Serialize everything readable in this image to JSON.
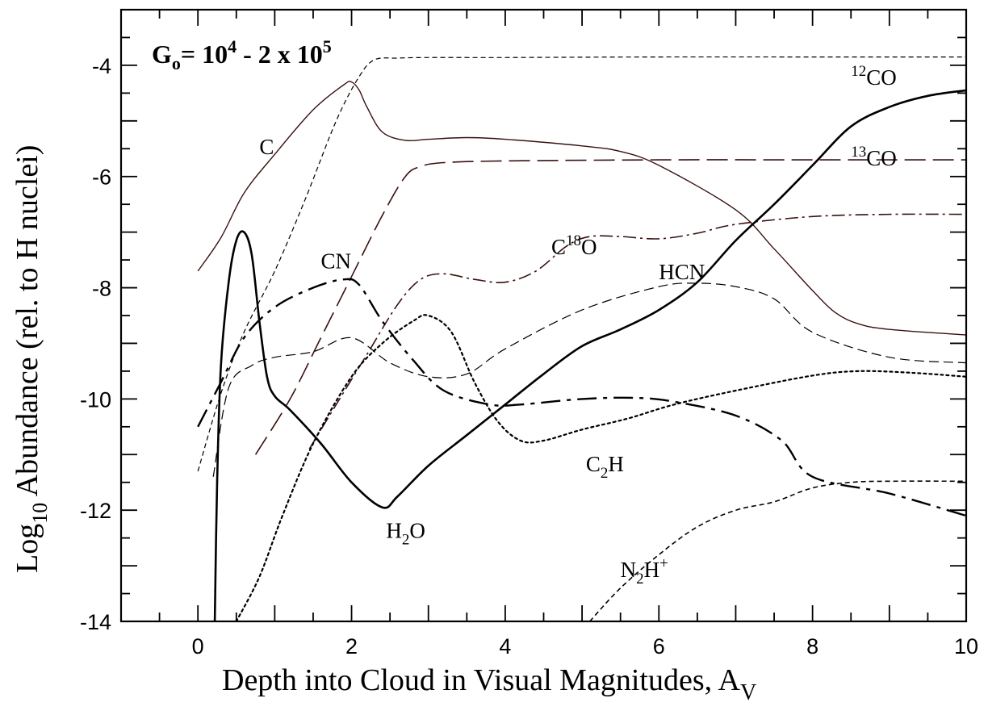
{
  "chart_data": {
    "type": "line",
    "title": "",
    "header": {
      "base": "G",
      "sub": "o",
      "rest": "= 10",
      "sup": "4",
      "tail": " - 2 x 10",
      "sup2": "5"
    },
    "xlabel": {
      "main": "Depth into Cloud in Visual Magnitudes, A",
      "sub": "V"
    },
    "ylabel": {
      "pre": "Log",
      "sub": "10",
      "post": " Abundance (rel. to H nuclei)"
    },
    "xlim": [
      -1,
      10
    ],
    "ylim": [
      -14,
      -3
    ],
    "x_ticks": [
      "0",
      "2",
      "4",
      "6",
      "8",
      "10"
    ],
    "x_tick_values": [
      0,
      2,
      4,
      6,
      8,
      10
    ],
    "y_ticks": [
      "-4",
      "-6",
      "-8",
      "-10",
      "-12",
      "-14"
    ],
    "y_tick_values": [
      -4,
      -6,
      -8,
      -10,
      -12,
      -14
    ],
    "grid": false,
    "series": [
      {
        "name": "12CO",
        "color": "#000000",
        "style": "short-dash",
        "width": 1.2,
        "x": [
          0,
          0.3,
          0.6,
          1.0,
          1.4,
          1.8,
          2.1,
          2.3,
          2.6,
          3,
          4,
          6,
          8,
          10
        ],
        "y": [
          -11.3,
          -9.9,
          -8.8,
          -7.7,
          -6.4,
          -5.0,
          -4.2,
          -3.9,
          -3.87,
          -3.86,
          -3.86,
          -3.85,
          -3.85,
          -3.85
        ]
      },
      {
        "name": "13CO",
        "color": "#3a1010",
        "style": "long-dash",
        "width": 1.6,
        "x": [
          0.75,
          1.2,
          1.6,
          2.0,
          2.4,
          2.7,
          2.9,
          3.2,
          4,
          6,
          8,
          10
        ],
        "y": [
          -11.0,
          -10.0,
          -8.9,
          -7.8,
          -6.7,
          -6.0,
          -5.82,
          -5.75,
          -5.72,
          -5.7,
          -5.7,
          -5.7
        ]
      },
      {
        "name": "C",
        "color": "#3a1010",
        "style": "solid",
        "width": 1.4,
        "x": [
          0,
          0.3,
          0.6,
          1.0,
          1.5,
          1.9,
          2.0,
          2.1,
          2.2,
          2.4,
          2.7,
          3.0,
          3.5,
          4,
          5,
          5.5,
          6,
          7,
          7.5,
          8,
          8.3,
          8.6,
          9,
          10
        ],
        "y": [
          -7.7,
          -7.1,
          -6.3,
          -5.6,
          -4.8,
          -4.35,
          -4.3,
          -4.45,
          -4.75,
          -5.2,
          -5.35,
          -5.33,
          -5.3,
          -5.33,
          -5.45,
          -5.55,
          -5.8,
          -6.6,
          -7.3,
          -8.05,
          -8.45,
          -8.65,
          -8.75,
          -8.85
        ]
      },
      {
        "name": "C18O",
        "color": "#3a1010",
        "style": "dash-dot",
        "width": 1.6,
        "x": [
          1.45,
          1.8,
          2.2,
          2.6,
          2.9,
          3.2,
          3.6,
          4.0,
          4.4,
          4.8,
          5.1,
          5.5,
          6.0,
          6.5,
          7,
          8,
          9,
          10
        ],
        "y": [
          -10.9,
          -10.1,
          -9.2,
          -8.3,
          -7.85,
          -7.75,
          -7.85,
          -7.9,
          -7.7,
          -7.25,
          -7.08,
          -7.08,
          -7.12,
          -7.02,
          -6.86,
          -6.72,
          -6.68,
          -6.68
        ]
      },
      {
        "name": "HCN",
        "color": "#000000",
        "style": "dash",
        "width": 1.2,
        "x": [
          0.2,
          0.4,
          0.7,
          1.0,
          1.5,
          2.0,
          2.5,
          3.0,
          3.5,
          4,
          5,
          6,
          6.5,
          7,
          7.5,
          8,
          9,
          10
        ],
        "y": [
          -11.4,
          -9.8,
          -9.4,
          -9.25,
          -9.15,
          -8.9,
          -9.35,
          -9.6,
          -9.55,
          -9.1,
          -8.4,
          -7.98,
          -7.92,
          -7.98,
          -8.2,
          -8.8,
          -9.25,
          -9.35
        ]
      },
      {
        "name": "CN",
        "color": "#000000",
        "style": "long-dash-dot",
        "width": 2.4,
        "x": [
          0,
          0.3,
          0.6,
          1.0,
          1.5,
          1.9,
          2.1,
          2.4,
          2.8,
          3.2,
          3.8,
          4.2,
          5,
          5.7,
          6.2,
          7,
          7.6,
          8,
          9,
          10
        ],
        "y": [
          -10.5,
          -9.7,
          -8.9,
          -8.35,
          -8.0,
          -7.85,
          -7.95,
          -8.6,
          -9.3,
          -9.85,
          -10.1,
          -10.1,
          -10.0,
          -9.98,
          -10.05,
          -10.3,
          -10.75,
          -11.4,
          -11.7,
          -12.1
        ]
      },
      {
        "name": "C2H",
        "color": "#000000",
        "style": "dotted",
        "width": 2.2,
        "x": [
          0.5,
          0.8,
          1.1,
          1.5,
          2.0,
          2.4,
          2.8,
          3.0,
          3.3,
          3.6,
          3.9,
          4.2,
          4.5,
          5.0,
          5.6,
          6.2,
          7.0,
          8.0,
          8.6,
          9.3,
          10
        ],
        "y": [
          -14.0,
          -13.2,
          -12.1,
          -10.8,
          -9.6,
          -9.0,
          -8.6,
          -8.5,
          -8.8,
          -9.7,
          -10.4,
          -10.75,
          -10.75,
          -10.55,
          -10.35,
          -10.1,
          -9.85,
          -9.58,
          -9.5,
          -9.53,
          -9.6
        ]
      },
      {
        "name": "H2O",
        "color": "#000000",
        "style": "solid",
        "width": 2.6,
        "x": [
          0.22,
          0.25,
          0.3,
          0.4,
          0.5,
          0.6,
          0.7,
          0.8,
          0.9,
          1.0,
          1.2,
          1.6,
          2.0,
          2.4,
          2.6,
          3.0,
          3.5,
          4.0,
          4.5,
          5,
          5.5,
          6,
          6.5,
          7,
          7.5,
          8,
          8.5,
          9,
          9.5,
          10
        ],
        "y": [
          -14.0,
          -11.5,
          -9.4,
          -7.9,
          -7.15,
          -7.0,
          -7.4,
          -8.6,
          -9.6,
          -9.95,
          -10.2,
          -10.8,
          -11.5,
          -11.95,
          -11.75,
          -11.2,
          -10.65,
          -10.1,
          -9.55,
          -9.05,
          -8.75,
          -8.4,
          -7.9,
          -7.15,
          -6.5,
          -5.8,
          -5.1,
          -4.75,
          -4.55,
          -4.45
        ]
      },
      {
        "name": "N2H+",
        "color": "#000000",
        "style": "short-dash",
        "width": 1.6,
        "x": [
          5.1,
          5.5,
          6.0,
          6.5,
          7.0,
          7.5,
          8.0,
          8.5,
          9.0,
          10
        ],
        "y": [
          -14.0,
          -13.4,
          -12.8,
          -12.3,
          -12.0,
          -11.85,
          -11.6,
          -11.5,
          -11.48,
          -11.48
        ]
      }
    ],
    "labels": [
      {
        "name": "label-12co",
        "sup": "12",
        "text": "CO",
        "x": 8.5,
        "y": -4.35
      },
      {
        "name": "label-13co",
        "sup": "13",
        "text": "CO",
        "x": 8.5,
        "y": -5.8
      },
      {
        "name": "label-c",
        "text": "C",
        "x": 0.8,
        "y": -5.6
      },
      {
        "name": "label-c18o",
        "pre": "C",
        "sup": "18",
        "text": "O",
        "x": 4.6,
        "y": -7.4
      },
      {
        "name": "label-cn",
        "text": "CN",
        "x": 1.6,
        "y": -7.65
      },
      {
        "name": "label-hcn",
        "text": "HCN",
        "x": 6.0,
        "y": -7.85
      },
      {
        "name": "label-c2h",
        "pre": "C",
        "sub": "2",
        "text": "H",
        "x": 5.05,
        "y": -11.3
      },
      {
        "name": "label-h2o",
        "pre": "H",
        "sub": "2",
        "text": "O",
        "x": 2.45,
        "y": -12.5
      },
      {
        "name": "label-n2h",
        "pre": "N",
        "sub": "2",
        "text": "H",
        "sup": "+",
        "x": 5.5,
        "y": -13.2
      }
    ]
  }
}
